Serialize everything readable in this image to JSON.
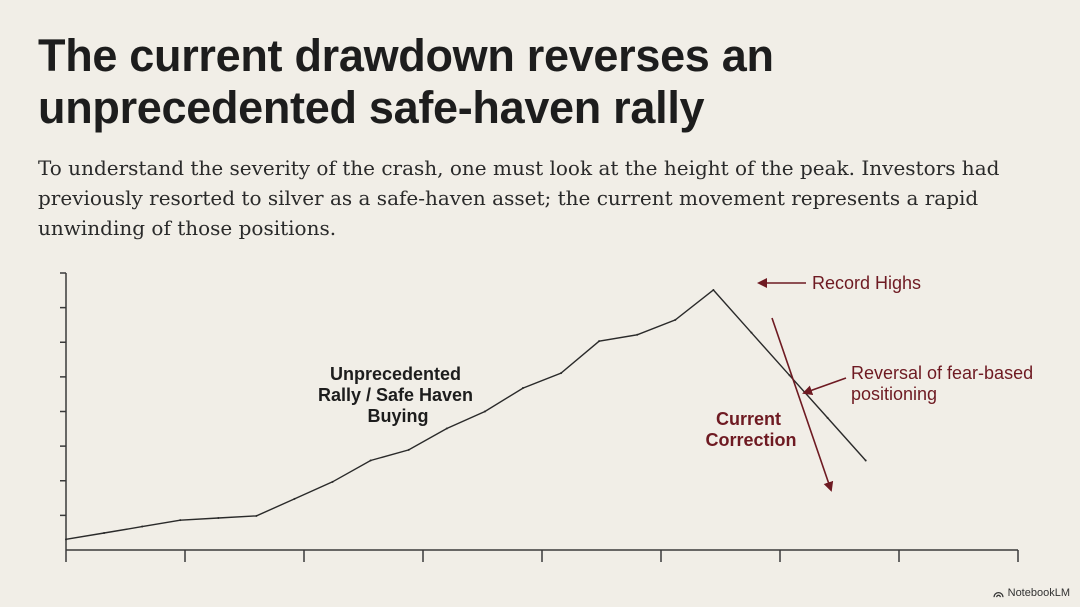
{
  "heading": {
    "title": "The current drawdown reverses an unprecedented safe-haven rally",
    "subtitle": "To understand the severity of the crash, one must look at the height of the peak. Investors had previously resorted to silver as a safe-haven asset; the current movement represents a rapid unwinding of those positions."
  },
  "brand": {
    "label": "NotebookLM"
  },
  "chart_data": {
    "type": "line",
    "title": "",
    "xlabel": "",
    "ylabel": "",
    "x": [
      0,
      1,
      2,
      3,
      4,
      5,
      6,
      7,
      8,
      9,
      10,
      11,
      12,
      13,
      14,
      15,
      16,
      17,
      18,
      19,
      20,
      21
    ],
    "values": [
      5,
      8,
      11,
      14,
      15,
      16,
      24,
      32,
      42,
      47,
      57,
      65,
      76,
      83,
      98,
      101,
      108,
      122,
      102,
      82,
      62,
      42
    ],
    "xlim": [
      0,
      25
    ],
    "ylim": [
      0,
      130
    ],
    "x_ticks": 9,
    "y_ticks": 8,
    "grid": false,
    "color": "#2a2a2a",
    "accent_color": "#6e1a22",
    "annotations": {
      "rally_lines": [
        "Unprecedented",
        "Rally / Safe Haven",
        "Buying"
      ],
      "record_highs": "Record Highs",
      "reversal_lines": [
        "Reversal of fear-based",
        "positioning"
      ],
      "correction_lines": [
        "Current",
        "Correction"
      ]
    }
  }
}
